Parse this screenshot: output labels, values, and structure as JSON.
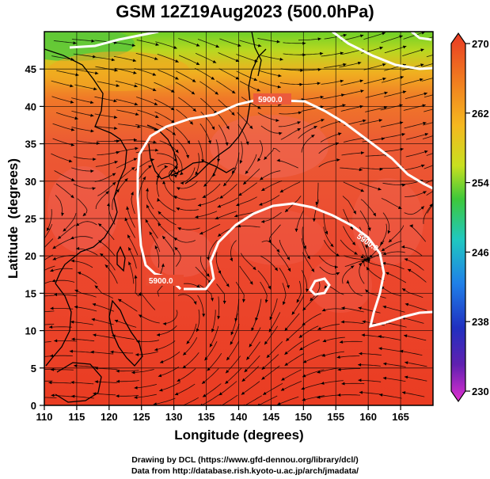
{
  "title": "GSM 12Z19Aug2023 (500.0hPa)",
  "map": {
    "x_label": "Longitude (degrees)",
    "y_label": "Latitude  (degrees)",
    "x_range": [
      110,
      170
    ],
    "y_range": [
      0,
      50
    ],
    "x_ticks": [
      "110",
      "115",
      "120",
      "125",
      "130",
      "135",
      "140",
      "145",
      "150",
      "155",
      "160",
      "165"
    ],
    "y_ticks": [
      "0",
      "5",
      "10",
      "15",
      "20",
      "25",
      "30",
      "35",
      "40",
      "45"
    ],
    "field": "temperature",
    "contour_value": "5900.0",
    "contour_labels": [
      "5900.0",
      "5900.0",
      "5900.0"
    ],
    "contour_color": "#ffffff",
    "streamlines": "wind vectors",
    "coastline_color": "#000000"
  },
  "colorbar": {
    "labels": [
      "270",
      "262",
      "254",
      "246",
      "238",
      "230"
    ],
    "colors": [
      "#e83a24",
      "#f07820",
      "#f5b820",
      "#c8e020",
      "#3ec83a",
      "#20c8c0",
      "#2080e8",
      "#2030c0",
      "#6020b0",
      "#e030d0"
    ]
  },
  "credits": {
    "line1": "Drawing by DCL (https://www.gfd-dennou.org/library/dcl/)",
    "line2": "Data from http://database.rish.kyoto-u.ac.jp/arch/jmadata/"
  }
}
